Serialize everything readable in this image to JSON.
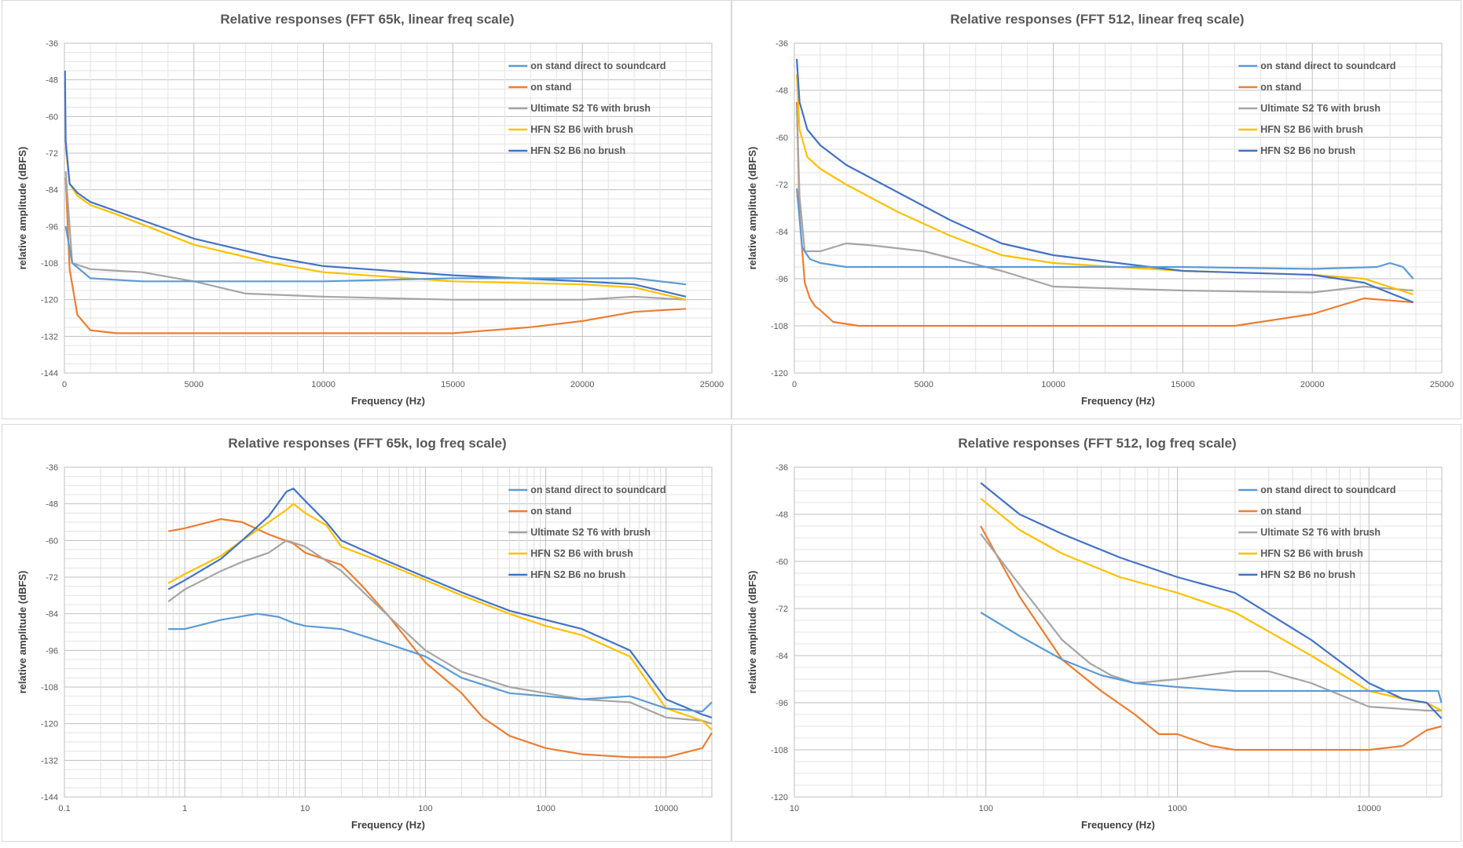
{
  "colors": {
    "on_stand_direct": "#5b9bd5",
    "on_stand": "#ed7d31",
    "ultimate": "#a5a5a5",
    "hfn_brush": "#ffc000",
    "hfn_no_brush": "#4472c4"
  },
  "chart_data": [
    {
      "type": "line",
      "title": "Relative responses (FFT 65k, linear freq scale)",
      "xlabel": "Frequency (Hz)",
      "ylabel": "relative amplitude (dBFS)",
      "xscale": "linear",
      "xlim": [
        0,
        25000
      ],
      "ylim": [
        -144,
        -36
      ],
      "xticks": [
        0,
        5000,
        10000,
        15000,
        20000,
        25000
      ],
      "xtick_labels": [
        "0",
        "5000",
        "10000",
        "15000",
        "20000",
        "25000"
      ],
      "yticks": [
        -36,
        -48,
        -60,
        -72,
        -84,
        -96,
        -108,
        -120,
        -132,
        -144
      ],
      "grid": true,
      "legend_position": "top-right",
      "series": [
        {
          "name": "on stand direct to soundcard",
          "color_key": "on_stand_direct",
          "x": [
            50,
            300,
            1000,
            3000,
            6000,
            10000,
            15000,
            20000,
            22000,
            24000
          ],
          "y": [
            -96,
            -108,
            -113,
            -114,
            -114,
            -114,
            -113,
            -113,
            -113,
            -115
          ]
        },
        {
          "name": "on stand",
          "color_key": "on_stand",
          "x": [
            50,
            200,
            500,
            1000,
            2000,
            5000,
            10000,
            15000,
            18000,
            20000,
            22000,
            24000
          ],
          "y": [
            -80,
            -110,
            -125,
            -130,
            -131,
            -131,
            -131,
            -131,
            -129,
            -127,
            -124,
            -123
          ]
        },
        {
          "name": "Ultimate S2 T6 with brush",
          "color_key": "ultimate",
          "x": [
            50,
            300,
            1000,
            3000,
            5000,
            7000,
            10000,
            15000,
            20000,
            22000,
            24000
          ],
          "y": [
            -78,
            -108,
            -110,
            -111,
            -114,
            -118,
            -119,
            -120,
            -120,
            -119,
            -120
          ]
        },
        {
          "name": "HFN S2 B6 with brush",
          "color_key": "hfn_brush",
          "x": [
            50,
            200,
            500,
            1000,
            2000,
            5000,
            8000,
            10000,
            15000,
            20000,
            22000,
            24000
          ],
          "y": [
            -70,
            -82,
            -86,
            -89,
            -92,
            -102,
            -108,
            -111,
            -114,
            -115,
            -116,
            -120
          ]
        },
        {
          "name": "HFN S2 B6 no brush",
          "color_key": "hfn_no_brush",
          "x": [
            20,
            50,
            200,
            500,
            1000,
            2000,
            5000,
            8000,
            10000,
            15000,
            20000,
            22000,
            24000
          ],
          "y": [
            -45,
            -68,
            -82,
            -85,
            -88,
            -91,
            -100,
            -106,
            -109,
            -112,
            -114,
            -115,
            -119
          ]
        }
      ]
    },
    {
      "type": "line",
      "title": "Relative responses (FFT 512, linear freq scale)",
      "xlabel": "Frequency (Hz)",
      "ylabel": "relative amplitude (dBFS)",
      "xscale": "linear",
      "xlim": [
        0,
        25000
      ],
      "ylim": [
        -120,
        -36
      ],
      "xticks": [
        0,
        5000,
        10000,
        15000,
        20000,
        25000
      ],
      "xtick_labels": [
        "0",
        "5000",
        "10000",
        "15000",
        "20000",
        "25000"
      ],
      "yticks": [
        -36,
        -48,
        -60,
        -72,
        -84,
        -96,
        -108,
        -120
      ],
      "grid": true,
      "legend_position": "top-right",
      "series": [
        {
          "name": "on stand direct to soundcard",
          "color_key": "on_stand_direct",
          "x": [
            94,
            300,
            600,
            1000,
            2000,
            5000,
            10000,
            15000,
            20000,
            22500,
            23000,
            23500,
            23900
          ],
          "y": [
            -73,
            -88,
            -91,
            -92,
            -93,
            -93,
            -93,
            -93,
            -93.5,
            -93,
            -92,
            -93,
            -96
          ]
        },
        {
          "name": "on stand",
          "color_key": "on_stand",
          "x": [
            94,
            200,
            400,
            600,
            800,
            1000,
            1500,
            2500,
            5000,
            10000,
            15000,
            17000,
            20000,
            22000,
            23900
          ],
          "y": [
            -51,
            -80,
            -97,
            -101,
            -103,
            -104,
            -107,
            -108,
            -108,
            -108,
            -108,
            -108,
            -105,
            -101,
            -102
          ]
        },
        {
          "name": "Ultimate S2 T6 with brush",
          "color_key": "ultimate",
          "x": [
            94,
            200,
            400,
            1000,
            2000,
            3000,
            5000,
            8000,
            10000,
            15000,
            20000,
            22000,
            23900
          ],
          "y": [
            -52,
            -75,
            -89,
            -89,
            -87,
            -87.5,
            -89,
            -94,
            -98,
            -99,
            -99.5,
            -98,
            -99
          ]
        },
        {
          "name": "HFN S2 B6 with brush",
          "color_key": "hfn_brush",
          "x": [
            94,
            200,
            500,
            1000,
            2000,
            4000,
            6000,
            8000,
            10000,
            15000,
            20000,
            22000,
            23900
          ],
          "y": [
            -44,
            -58,
            -65,
            -68,
            -72,
            -79,
            -85,
            -90,
            -92,
            -94,
            -95,
            -96,
            -100
          ]
        },
        {
          "name": "HFN S2 B6 no brush",
          "color_key": "hfn_no_brush",
          "x": [
            94,
            200,
            500,
            1000,
            2000,
            4000,
            6000,
            8000,
            10000,
            15000,
            20000,
            22000,
            23900
          ],
          "y": [
            -40,
            -51,
            -58,
            -62,
            -67,
            -74,
            -81,
            -87,
            -90,
            -94,
            -95,
            -97,
            -102
          ]
        }
      ]
    },
    {
      "type": "line",
      "title": "Relative responses (FFT 65k, log freq scale)",
      "xlabel": "Frequency (Hz)",
      "ylabel": "relative amplitude (dBFS)",
      "xscale": "log",
      "xlim": [
        0.1,
        24000
      ],
      "ylim": [
        -144,
        -36
      ],
      "xticks": [
        0.1,
        1,
        10,
        100,
        1000,
        10000
      ],
      "xtick_labels": [
        "0.1",
        "1",
        "10",
        "100",
        "1000",
        "10000"
      ],
      "yticks": [
        -36,
        -48,
        -60,
        -72,
        -84,
        -96,
        -108,
        -120,
        -132,
        -144
      ],
      "grid": true,
      "legend_position": "top-right",
      "series": [
        {
          "name": "on stand direct to soundcard",
          "color_key": "on_stand_direct",
          "x": [
            0.73,
            1,
            2,
            4,
            6,
            8,
            10,
            20,
            50,
            100,
            200,
            500,
            1000,
            2000,
            5000,
            10000,
            20000,
            24000
          ],
          "y": [
            -89,
            -89,
            -86,
            -84,
            -85,
            -87,
            -88,
            -89,
            -94,
            -98,
            -105,
            -110,
            -111,
            -112,
            -111,
            -115,
            -116,
            -113
          ]
        },
        {
          "name": "on stand",
          "color_key": "on_stand",
          "x": [
            0.73,
            1,
            2,
            3,
            5,
            8,
            10,
            20,
            30,
            50,
            100,
            200,
            300,
            500,
            1000,
            2000,
            5000,
            10000,
            20000,
            24000
          ],
          "y": [
            -57,
            -56,
            -53,
            -54,
            -58,
            -61,
            -64,
            -68,
            -75,
            -85,
            -100,
            -110,
            -118,
            -124,
            -128,
            -130,
            -131,
            -131,
            -128,
            -123
          ]
        },
        {
          "name": "Ultimate S2 T6 with brush",
          "color_key": "ultimate",
          "x": [
            0.73,
            1,
            2,
            3,
            5,
            7,
            10,
            20,
            50,
            100,
            200,
            500,
            1000,
            2000,
            5000,
            10000,
            20000,
            24000
          ],
          "y": [
            -80,
            -76,
            -70,
            -67,
            -64,
            -60,
            -62,
            -70,
            -85,
            -96,
            -103,
            -108,
            -110,
            -112,
            -113,
            -118,
            -119,
            -120
          ]
        },
        {
          "name": "HFN S2 B6 with brush",
          "color_key": "hfn_brush",
          "x": [
            0.73,
            1,
            2,
            3,
            5,
            7,
            8,
            10,
            15,
            20,
            50,
            100,
            200,
            500,
            1000,
            2000,
            5000,
            10000,
            20000,
            24000
          ],
          "y": [
            -74,
            -71,
            -65,
            -60,
            -54,
            -50,
            -48,
            -51,
            -55,
            -62,
            -68,
            -73,
            -78,
            -84,
            -88,
            -91,
            -98,
            -115,
            -119,
            -122
          ]
        },
        {
          "name": "HFN S2 B6 no brush",
          "color_key": "hfn_no_brush",
          "x": [
            0.73,
            1,
            2,
            3,
            5,
            7,
            8,
            10,
            15,
            20,
            50,
            100,
            200,
            500,
            1000,
            2000,
            5000,
            10000,
            20000,
            24000
          ],
          "y": [
            -76,
            -73,
            -66,
            -60,
            -52,
            -44,
            -43,
            -47,
            -54,
            -60,
            -67,
            -72,
            -77,
            -83,
            -86,
            -89,
            -96,
            -112,
            -117,
            -118
          ]
        }
      ]
    },
    {
      "type": "line",
      "title": "Relative responses (FFT 512, log freq scale)",
      "xlabel": "Frequency (Hz)",
      "ylabel": "relative amplitude (dBFS)",
      "xscale": "log",
      "xlim": [
        10,
        24000
      ],
      "ylim": [
        -120,
        -36
      ],
      "xticks": [
        10,
        100,
        1000,
        10000
      ],
      "xtick_labels": [
        "10",
        "100",
        "1000",
        "10000"
      ],
      "yticks": [
        -36,
        -48,
        -60,
        -72,
        -84,
        -96,
        -108,
        -120
      ],
      "grid": true,
      "legend_position": "top-right",
      "series": [
        {
          "name": "on stand direct to soundcard",
          "color_key": "on_stand_direct",
          "x": [
            94,
            150,
            250,
            400,
            600,
            1000,
            2000,
            5000,
            10000,
            20000,
            23000,
            23900
          ],
          "y": [
            -73,
            -79,
            -85,
            -89,
            -91,
            -92,
            -93,
            -93,
            -93,
            -93,
            -93,
            -96
          ]
        },
        {
          "name": "on stand",
          "color_key": "on_stand",
          "x": [
            94,
            150,
            250,
            400,
            600,
            800,
            1000,
            1500,
            2000,
            5000,
            10000,
            15000,
            20000,
            23900
          ],
          "y": [
            -51,
            -69,
            -85,
            -93,
            -99,
            -104,
            -104,
            -107,
            -108,
            -108,
            -108,
            -107,
            -103,
            -102
          ]
        },
        {
          "name": "Ultimate S2 T6 with brush",
          "color_key": "ultimate",
          "x": [
            94,
            150,
            250,
            350,
            450,
            600,
            1000,
            2000,
            3000,
            5000,
            10000,
            20000,
            23900
          ],
          "y": [
            -53,
            -66,
            -80,
            -86,
            -89,
            -91,
            -90,
            -88,
            -88,
            -91,
            -97,
            -98,
            -98
          ]
        },
        {
          "name": "HFN S2 B6 with brush",
          "color_key": "hfn_brush",
          "x": [
            94,
            150,
            250,
            500,
            1000,
            2000,
            5000,
            10000,
            15000,
            20000,
            23900
          ],
          "y": [
            -44,
            -52,
            -58,
            -64,
            -68,
            -73,
            -84,
            -93,
            -95,
            -96,
            -98
          ]
        },
        {
          "name": "HFN S2 B6 no brush",
          "color_key": "hfn_no_brush",
          "x": [
            94,
            150,
            250,
            500,
            1000,
            2000,
            5000,
            10000,
            15000,
            20000,
            23900
          ],
          "y": [
            -40,
            -48,
            -53,
            -59,
            -64,
            -68,
            -80,
            -91,
            -95,
            -96,
            -100
          ]
        }
      ]
    }
  ]
}
